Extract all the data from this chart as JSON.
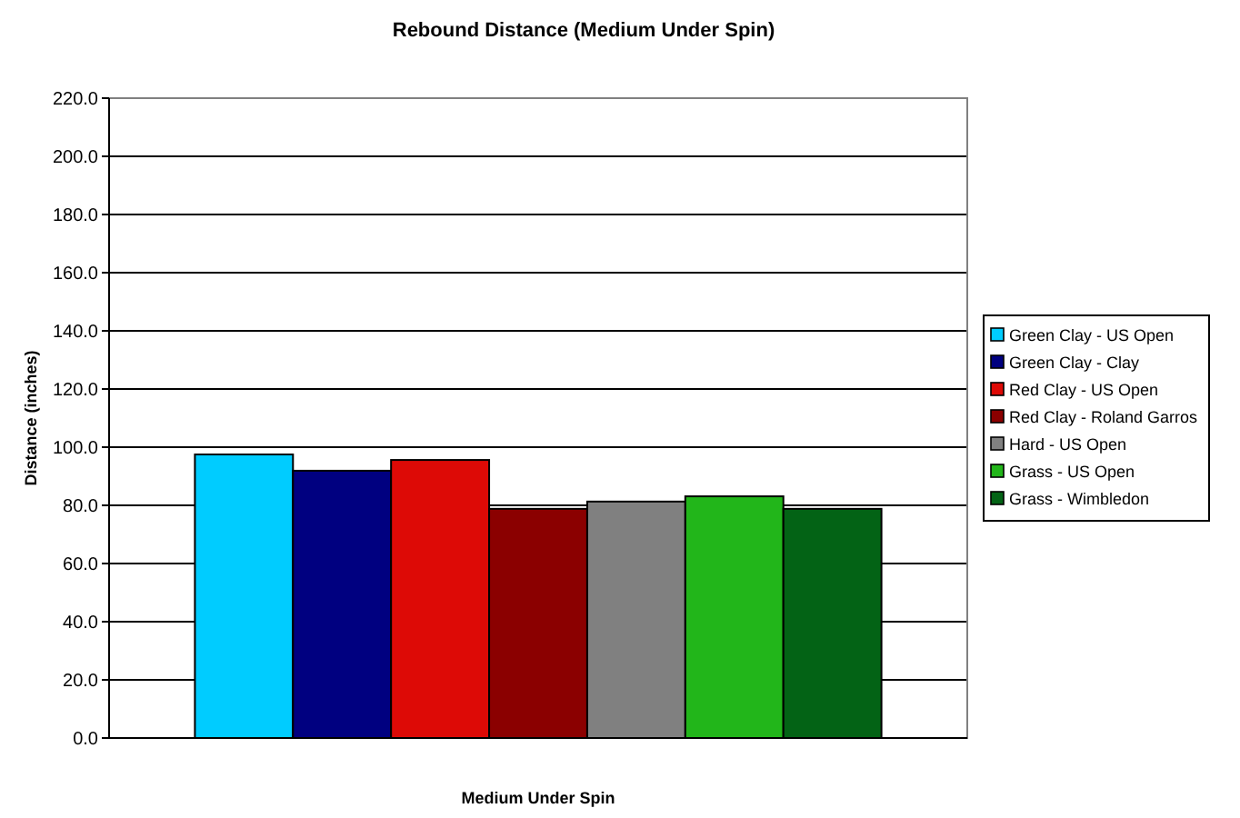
{
  "chart_data": {
    "type": "bar",
    "title": "Rebound Distance (Medium Under Spin)",
    "xlabel": "Medium Under Spin",
    "ylabel": "Distance (inches)",
    "categories": [
      null
    ],
    "series": [
      {
        "name": "Green Clay - US Open",
        "color": "#00ccff",
        "values": [
          97.5
        ]
      },
      {
        "name": "Green Clay - Clay",
        "color": "#000080",
        "values": [
          91.9
        ]
      },
      {
        "name": "Red Clay - US Open",
        "color": "#dd0a06",
        "values": [
          95.6
        ]
      },
      {
        "name": "Red Clay - Roland Garros",
        "color": "#8b0000",
        "values": [
          78.8
        ]
      },
      {
        "name": "Hard - US Open",
        "color": "#808080",
        "values": [
          81.3
        ]
      },
      {
        "name": "Grass - US Open",
        "color": "#22b61a",
        "values": [
          83.1
        ]
      },
      {
        "name": "Grass - Wimbledon",
        "color": "#036315",
        "values": [
          78.8
        ]
      }
    ],
    "ylim": [
      0,
      220
    ],
    "yticks": [
      {
        "value": 0,
        "label": "0.0"
      },
      {
        "value": 20,
        "label": "20.0"
      },
      {
        "value": 40,
        "label": "40.0"
      },
      {
        "value": 60,
        "label": "60.0"
      },
      {
        "value": 80,
        "label": "80.0"
      },
      {
        "value": 100,
        "label": "100.0"
      },
      {
        "value": 120,
        "label": "120.0"
      },
      {
        "value": 140,
        "label": "140.0"
      },
      {
        "value": 160,
        "label": "160.0"
      },
      {
        "value": 180,
        "label": "180.0"
      },
      {
        "value": 200,
        "label": "200.0"
      },
      {
        "value": 220,
        "label": "220.0"
      }
    ],
    "grid": "y",
    "legend": "right"
  }
}
